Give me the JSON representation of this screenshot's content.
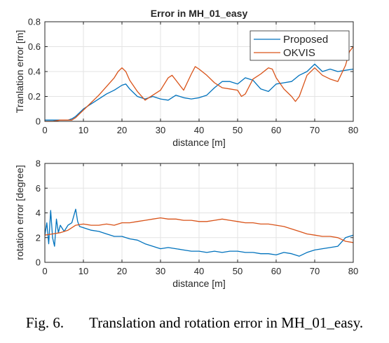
{
  "caption": {
    "number": "Fig. 6.",
    "text": "Translation and rotation error in MH_01_easy."
  },
  "chart_data": [
    {
      "type": "line",
      "title": "Error in MH_01_easy",
      "xlabel": "distance [m]",
      "ylabel": "Tranlation error [m]",
      "xlim": [
        0,
        80
      ],
      "ylim": [
        0,
        0.8
      ],
      "xticks": [
        "0",
        "10",
        "20",
        "30",
        "40",
        "50",
        "60",
        "70",
        "80"
      ],
      "yticks": [
        "0",
        "0.2",
        "0.4",
        "0.6",
        "0.8"
      ],
      "grid": true,
      "legend_position": "top-right",
      "series": [
        {
          "name": "Proposed",
          "color": "#0072BD",
          "points": [
            [
              0,
              0.01
            ],
            [
              2,
              0.01
            ],
            [
              4,
              0.01
            ],
            [
              6,
              0.01
            ],
            [
              7,
              0.02
            ],
            [
              8,
              0.04
            ],
            [
              9,
              0.07
            ],
            [
              10,
              0.1
            ],
            [
              12,
              0.14
            ],
            [
              14,
              0.18
            ],
            [
              16,
              0.22
            ],
            [
              18,
              0.25
            ],
            [
              20,
              0.29
            ],
            [
              21,
              0.3
            ],
            [
              22,
              0.26
            ],
            [
              24,
              0.2
            ],
            [
              26,
              0.18
            ],
            [
              28,
              0.2
            ],
            [
              30,
              0.18
            ],
            [
              32,
              0.17
            ],
            [
              34,
              0.21
            ],
            [
              36,
              0.19
            ],
            [
              38,
              0.18
            ],
            [
              40,
              0.19
            ],
            [
              42,
              0.21
            ],
            [
              44,
              0.27
            ],
            [
              46,
              0.32
            ],
            [
              48,
              0.32
            ],
            [
              50,
              0.3
            ],
            [
              52,
              0.35
            ],
            [
              54,
              0.33
            ],
            [
              56,
              0.26
            ],
            [
              58,
              0.24
            ],
            [
              60,
              0.3
            ],
            [
              62,
              0.31
            ],
            [
              64,
              0.32
            ],
            [
              66,
              0.37
            ],
            [
              68,
              0.4
            ],
            [
              70,
              0.46
            ],
            [
              72,
              0.4
            ],
            [
              74,
              0.42
            ],
            [
              76,
              0.4
            ],
            [
              78,
              0.41
            ],
            [
              80,
              0.42
            ]
          ]
        },
        {
          "name": "OKVIS",
          "color": "#D95319",
          "points": [
            [
              0,
              0.0
            ],
            [
              2,
              0.0
            ],
            [
              4,
              0.01
            ],
            [
              6,
              0.01
            ],
            [
              7,
              0.01
            ],
            [
              8,
              0.03
            ],
            [
              9,
              0.06
            ],
            [
              10,
              0.09
            ],
            [
              12,
              0.15
            ],
            [
              14,
              0.21
            ],
            [
              16,
              0.28
            ],
            [
              18,
              0.35
            ],
            [
              19,
              0.4
            ],
            [
              20,
              0.43
            ],
            [
              21,
              0.4
            ],
            [
              22,
              0.33
            ],
            [
              24,
              0.24
            ],
            [
              26,
              0.17
            ],
            [
              28,
              0.21
            ],
            [
              30,
              0.25
            ],
            [
              32,
              0.35
            ],
            [
              33,
              0.37
            ],
            [
              34,
              0.33
            ],
            [
              36,
              0.25
            ],
            [
              38,
              0.38
            ],
            [
              39,
              0.44
            ],
            [
              40,
              0.42
            ],
            [
              42,
              0.37
            ],
            [
              44,
              0.31
            ],
            [
              46,
              0.27
            ],
            [
              48,
              0.26
            ],
            [
              50,
              0.25
            ],
            [
              51,
              0.2
            ],
            [
              52,
              0.22
            ],
            [
              54,
              0.34
            ],
            [
              56,
              0.38
            ],
            [
              58,
              0.43
            ],
            [
              59,
              0.42
            ],
            [
              60,
              0.35
            ],
            [
              62,
              0.26
            ],
            [
              64,
              0.2
            ],
            [
              65,
              0.16
            ],
            [
              66,
              0.2
            ],
            [
              68,
              0.37
            ],
            [
              70,
              0.43
            ],
            [
              72,
              0.37
            ],
            [
              74,
              0.34
            ],
            [
              76,
              0.32
            ],
            [
              78,
              0.45
            ],
            [
              79,
              0.56
            ],
            [
              80,
              0.6
            ]
          ]
        }
      ]
    },
    {
      "type": "line",
      "title": "",
      "xlabel": "distance [m]",
      "ylabel": "rotation error [degree]",
      "xlim": [
        0,
        80
      ],
      "ylim": [
        0,
        8
      ],
      "xticks": [
        "0",
        "10",
        "20",
        "30",
        "40",
        "50",
        "60",
        "70",
        "80"
      ],
      "yticks": [
        "0",
        "2",
        "4",
        "6",
        "8"
      ],
      "grid": true,
      "series": [
        {
          "color": "#0072BD",
          "points": [
            [
              0,
              2.2
            ],
            [
              0.5,
              3.2
            ],
            [
              1,
              1.5
            ],
            [
              1.5,
              4.2
            ],
            [
              2,
              2.0
            ],
            [
              2.5,
              1.3
            ],
            [
              3,
              3.5
            ],
            [
              3.5,
              2.4
            ],
            [
              4,
              3.0
            ],
            [
              5,
              2.5
            ],
            [
              6,
              3.0
            ],
            [
              7,
              3.2
            ],
            [
              8,
              4.3
            ],
            [
              8.5,
              3.3
            ],
            [
              9,
              2.9
            ],
            [
              10,
              2.8
            ],
            [
              12,
              2.6
            ],
            [
              14,
              2.5
            ],
            [
              16,
              2.3
            ],
            [
              18,
              2.1
            ],
            [
              20,
              2.1
            ],
            [
              22,
              1.9
            ],
            [
              24,
              1.8
            ],
            [
              26,
              1.5
            ],
            [
              28,
              1.3
            ],
            [
              30,
              1.1
            ],
            [
              32,
              1.2
            ],
            [
              34,
              1.1
            ],
            [
              36,
              1.0
            ],
            [
              38,
              0.9
            ],
            [
              40,
              0.9
            ],
            [
              42,
              0.8
            ],
            [
              44,
              0.9
            ],
            [
              46,
              0.8
            ],
            [
              48,
              0.9
            ],
            [
              50,
              0.9
            ],
            [
              52,
              0.8
            ],
            [
              54,
              0.8
            ],
            [
              56,
              0.7
            ],
            [
              58,
              0.7
            ],
            [
              60,
              0.6
            ],
            [
              62,
              0.8
            ],
            [
              64,
              0.7
            ],
            [
              66,
              0.5
            ],
            [
              68,
              0.8
            ],
            [
              70,
              1.0
            ],
            [
              72,
              1.1
            ],
            [
              74,
              1.2
            ],
            [
              76,
              1.3
            ],
            [
              78,
              2.0
            ],
            [
              80,
              2.2
            ]
          ]
        },
        {
          "color": "#D95319",
          "points": [
            [
              0,
              2.2
            ],
            [
              2,
              2.3
            ],
            [
              4,
              2.4
            ],
            [
              6,
              2.6
            ],
            [
              8,
              3.0
            ],
            [
              10,
              3.1
            ],
            [
              12,
              3.0
            ],
            [
              14,
              3.0
            ],
            [
              16,
              3.1
            ],
            [
              18,
              3.0
            ],
            [
              20,
              3.2
            ],
            [
              22,
              3.2
            ],
            [
              24,
              3.3
            ],
            [
              26,
              3.4
            ],
            [
              28,
              3.5
            ],
            [
              30,
              3.6
            ],
            [
              32,
              3.5
            ],
            [
              34,
              3.5
            ],
            [
              36,
              3.4
            ],
            [
              38,
              3.4
            ],
            [
              40,
              3.3
            ],
            [
              42,
              3.3
            ],
            [
              44,
              3.4
            ],
            [
              46,
              3.5
            ],
            [
              48,
              3.4
            ],
            [
              50,
              3.3
            ],
            [
              52,
              3.2
            ],
            [
              54,
              3.2
            ],
            [
              56,
              3.1
            ],
            [
              58,
              3.1
            ],
            [
              60,
              3.0
            ],
            [
              62,
              2.9
            ],
            [
              64,
              2.7
            ],
            [
              66,
              2.5
            ],
            [
              68,
              2.3
            ],
            [
              70,
              2.2
            ],
            [
              72,
              2.1
            ],
            [
              74,
              2.1
            ],
            [
              76,
              2.0
            ],
            [
              78,
              1.7
            ],
            [
              80,
              1.6
            ]
          ]
        }
      ]
    }
  ]
}
